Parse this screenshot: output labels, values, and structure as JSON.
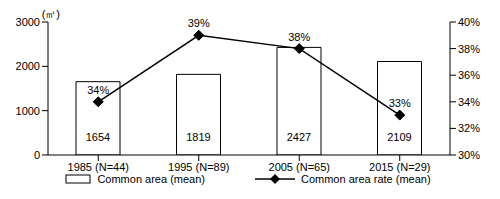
{
  "chart_data": {
    "type": "bar",
    "categories": [
      "1985 (N=44)",
      "1995 (N=89)",
      "2005 (N=65)",
      "2015 (N=29)"
    ],
    "y_label": "(㎡)",
    "ylim": [
      0,
      3000
    ],
    "yticks": [
      0,
      1000,
      2000,
      3000
    ],
    "y2lim": [
      30,
      40
    ],
    "y2ticks": [
      {
        "value": 30,
        "label": "30%"
      },
      {
        "value": 32,
        "label": "32%"
      },
      {
        "value": 34,
        "label": "34%"
      },
      {
        "value": 36,
        "label": "36%"
      },
      {
        "value": 38,
        "label": "38%"
      },
      {
        "value": 40,
        "label": "40%"
      }
    ],
    "legend": "bottom",
    "series": [
      {
        "name": "Common area (mean)",
        "type": "bar",
        "color": "#ffffff",
        "values": [
          1654,
          1819,
          2427,
          2109
        ],
        "data_labels": true
      },
      {
        "name": "Common area rate (mean)",
        "type": "line",
        "axis": "y2",
        "color": "#000000",
        "marker": "diamond",
        "values": [
          34,
          39,
          38,
          33
        ],
        "value_labels": [
          "34%",
          "39%",
          "38%",
          "33%"
        ],
        "data_labels": true
      }
    ]
  }
}
